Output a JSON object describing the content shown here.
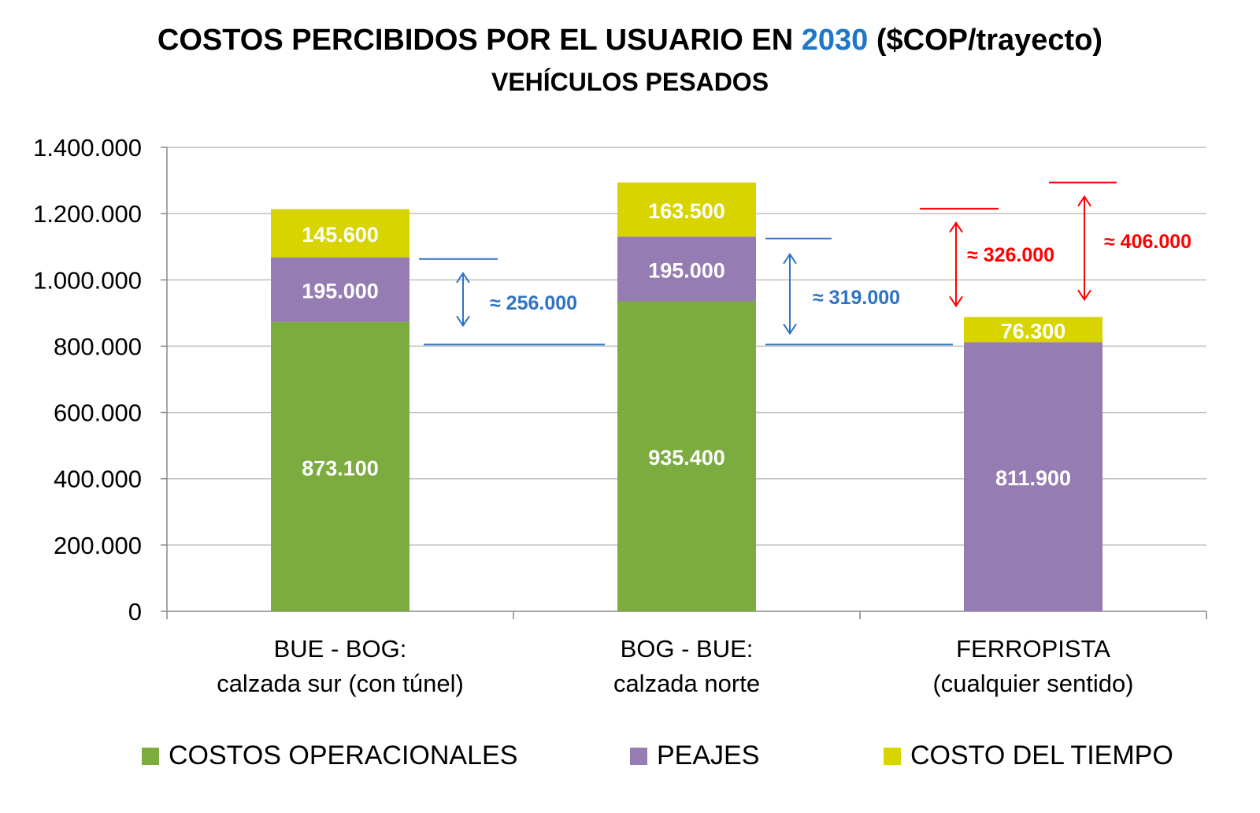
{
  "title": {
    "prefix": "COSTOS PERCIBIDOS POR EL USUARIO EN ",
    "year": "2030",
    "suffix": " ($COP/trayecto)",
    "subtitle": "VEHÍCULOS PESADOS"
  },
  "colors": {
    "costos_operacionales": "#7cac40",
    "peajes": "#957cb2",
    "costo_tiempo": "#d8d400",
    "accent_blue": "#2f73c4",
    "accent_red": "#ff0000",
    "grid": "#bfbfbf"
  },
  "chart_data": {
    "type": "bar",
    "stacked": true,
    "categories": [
      [
        "BUE - BOG:",
        "calzada sur (con túnel)"
      ],
      [
        "BOG - BUE:",
        "calzada norte"
      ],
      [
        "FERROPISTA",
        "(cualquier sentido)"
      ]
    ],
    "series": [
      {
        "name": "COSTOS OPERACIONALES",
        "color": "#7cac40",
        "values": [
          873100,
          935400,
          0
        ],
        "labels": [
          "873.100",
          "935.400",
          ""
        ]
      },
      {
        "name": "PEAJES",
        "color": "#957cb2",
        "values": [
          195000,
          195000,
          811900
        ],
        "labels": [
          "195.000",
          "195.000",
          "811.900"
        ]
      },
      {
        "name": "COSTO DEL TIEMPO",
        "color": "#d8d400",
        "values": [
          145600,
          163500,
          76300
        ],
        "labels": [
          "145.600",
          "163.500",
          "76.300"
        ]
      }
    ],
    "ylim": [
      0,
      1400000
    ],
    "yticks": [
      0,
      200000,
      400000,
      600000,
      800000,
      1000000,
      1200000,
      1400000
    ],
    "ytick_labels": [
      "0",
      "200.000",
      "400.000",
      "600.000",
      "800.000",
      "1.000.000",
      "1.200.000",
      "1.400.000"
    ],
    "grid": true,
    "legend": "bottom",
    "annotations": [
      {
        "text": "≈ 256.000",
        "color": "blue",
        "between_category": 0,
        "from_value": 805000,
        "to_value": 1063000
      },
      {
        "text": "≈ 319.000",
        "color": "blue",
        "between_category": 1,
        "from_value": 805000,
        "to_value": 1125000
      },
      {
        "text": "≈ 326.000",
        "color": "red",
        "category": 2,
        "side": "left",
        "from_value": 888200,
        "to_value": 1215000
      },
      {
        "text": "≈ 406.000",
        "color": "red",
        "category": 2,
        "side": "right",
        "from_value": 888200,
        "to_value": 1294000
      }
    ]
  },
  "legend_items": [
    {
      "label": "COSTOS OPERACIONALES",
      "color": "#7cac40"
    },
    {
      "label": "PEAJES",
      "color": "#957cb2"
    },
    {
      "label": "COSTO DEL TIEMPO",
      "color": "#d8d400"
    }
  ]
}
